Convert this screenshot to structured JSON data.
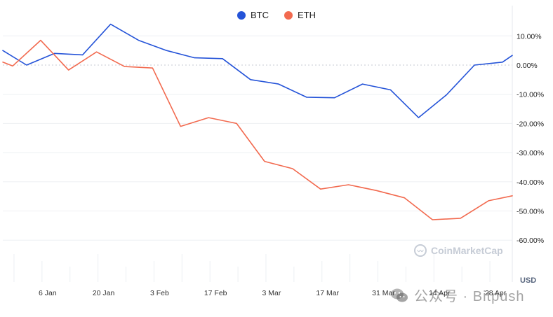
{
  "legend": [
    {
      "name": "BTC",
      "color": "#2453d8"
    },
    {
      "name": "ETH",
      "color": "#f26a4f"
    }
  ],
  "unit": "USD",
  "brand": {
    "text": "CoinMarketCap",
    "icon": "coinmarketcap-logo-icon"
  },
  "watermark": {
    "text": "公众号 · Bitpush",
    "icon": "wechat-icon"
  },
  "chart_data": {
    "type": "line",
    "title": "",
    "xlabel": "",
    "ylabel": "",
    "ylim": [
      -70,
      20
    ],
    "y_ticks": [
      10,
      0,
      -10,
      -20,
      -30,
      -40,
      -50,
      -60
    ],
    "y_tick_labels": [
      "10.00%",
      "0.00%",
      "-10.00%",
      "-20.00%",
      "-30.00%",
      "-40.00%",
      "-50.00%",
      "-60.00%"
    ],
    "x_range": [
      0,
      18.2
    ],
    "x_ticks": [
      1.6,
      3.6,
      5.6,
      7.6,
      9.6,
      11.6,
      13.6,
      15.6,
      17.6
    ],
    "x_tick_labels": [
      "6 Jan",
      "20 Jan",
      "3 Feb",
      "17 Feb",
      "3 Mar",
      "17 Mar",
      "31 Mar",
      "14 Apr",
      "28 Apr"
    ],
    "zero_line": true,
    "grid": "horizontal",
    "legend_position": "top-center",
    "series": [
      {
        "name": "BTC",
        "color": "#2453d8",
        "x": [
          0,
          0.85,
          1.85,
          2.85,
          3.85,
          4.85,
          5.85,
          6.85,
          7.85,
          8.85,
          9.85,
          10.85,
          11.85,
          12.85,
          13.85,
          14.85,
          15.85,
          16.85,
          17.85,
          18.2
        ],
        "y": [
          5,
          0,
          4,
          3.5,
          14,
          8.5,
          5,
          2.5,
          2.2,
          -5,
          -6.5,
          -11,
          -11.2,
          -6.5,
          -8.5,
          -18,
          -10.2,
          0,
          1,
          3.3
        ]
      },
      {
        "name": "ETH",
        "color": "#f26a4f",
        "x": [
          0,
          0.35,
          1.35,
          2.35,
          3.35,
          4.35,
          5.35,
          6.35,
          7.35,
          8.35,
          9.35,
          10.35,
          11.35,
          12.35,
          13.35,
          14.35,
          15.35,
          16.35,
          17.35,
          18.2
        ],
        "y": [
          1,
          -0.3,
          8.5,
          -1.7,
          4.5,
          -0.5,
          -1,
          -21,
          -18,
          -20,
          -33,
          -35.5,
          -42.5,
          -41,
          -43,
          -45.5,
          -53,
          -52.5,
          -46.5,
          -44.8
        ]
      }
    ]
  }
}
